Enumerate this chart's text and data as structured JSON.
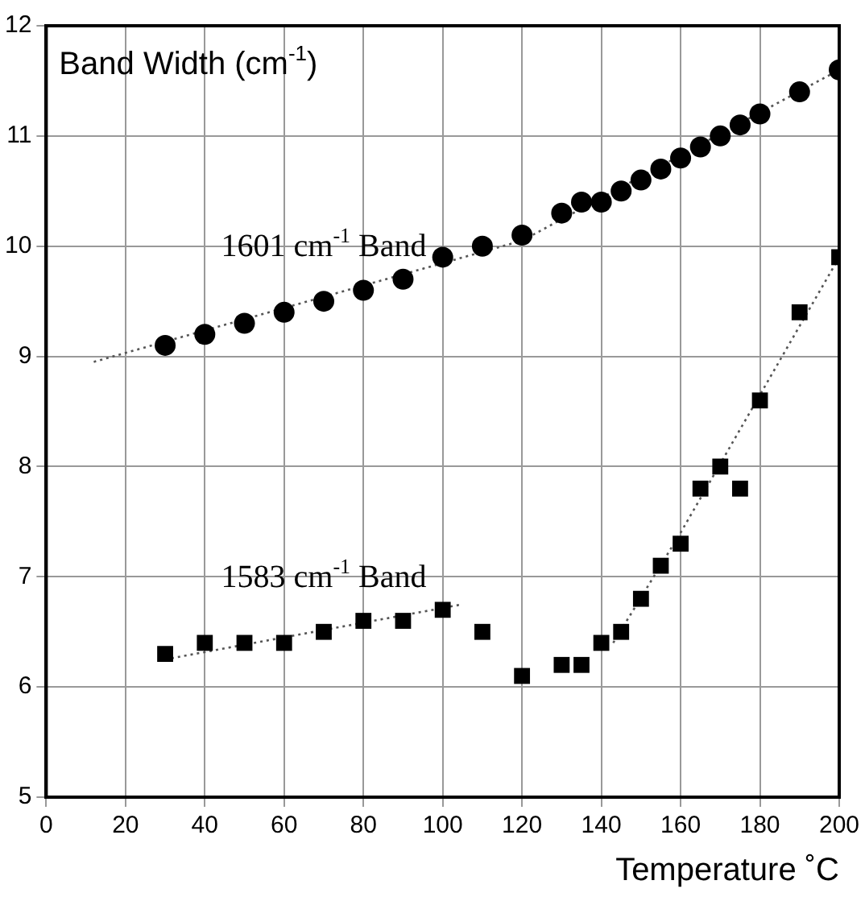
{
  "chart_data": {
    "type": "scatter",
    "xlabel": "Temperature ˚C",
    "annotations": [
      "Band Width (cm$^{-1}$)"
    ],
    "xlim": [
      0,
      200
    ],
    "xticks": [
      0,
      20,
      40,
      60,
      80,
      100,
      120,
      140,
      160,
      180,
      200
    ],
    "ylim": [
      5,
      12
    ],
    "yticks": [
      5,
      6,
      7,
      8,
      9,
      10,
      11,
      12
    ],
    "grid": true,
    "legend": false,
    "series": [
      {
        "name": "1601 cm$^{-1}$ Band",
        "color": "#000000",
        "marker": "circle",
        "x": [
          30,
          40,
          50,
          60,
          70,
          80,
          90,
          100,
          110,
          120,
          130,
          135,
          140,
          145,
          150,
          155,
          160,
          165,
          170,
          175,
          180,
          190,
          200
        ],
        "values": [
          9.1,
          9.2,
          9.3,
          9.4,
          9.5,
          9.6,
          9.7,
          9.9,
          10.0,
          10.1,
          10.3,
          10.4,
          10.4,
          10.5,
          10.6,
          10.7,
          10.8,
          10.9,
          11.0,
          11.1,
          11.2,
          11.4,
          11.6
        ]
      },
      {
        "name": "1583 cm$^{-1}$ Band",
        "color": "#000000",
        "marker": "square",
        "x": [
          30,
          40,
          50,
          60,
          70,
          80,
          90,
          100,
          110,
          120,
          130,
          135,
          140,
          145,
          150,
          155,
          160,
          165,
          170,
          175,
          180,
          190,
          200
        ],
        "values": [
          6.3,
          6.4,
          6.4,
          6.4,
          6.5,
          6.6,
          6.6,
          6.7,
          6.5,
          6.1,
          6.2,
          6.2,
          6.4,
          6.5,
          6.8,
          7.1,
          7.3,
          7.8,
          8.0,
          7.8,
          8.6,
          9.4,
          9.9
        ]
      },
      {
        "type": "line",
        "color": "#555555",
        "marker": "none",
        "line_style": "dotted",
        "x": [
          12,
          120,
          200
        ],
        "values": [
          8.95,
          10.05,
          11.6
        ]
      },
      {
        "type": "line",
        "color": "#555555",
        "marker": "none",
        "line_style": "dotted",
        "x": [
          30,
          105
        ],
        "values": [
          6.25,
          6.75
        ]
      },
      {
        "type": "line",
        "color": "#555555",
        "marker": "none",
        "line_style": "dotted",
        "x": [
          143,
          160,
          200
        ],
        "values": [
          6.4,
          7.4,
          9.9
        ]
      }
    ]
  }
}
